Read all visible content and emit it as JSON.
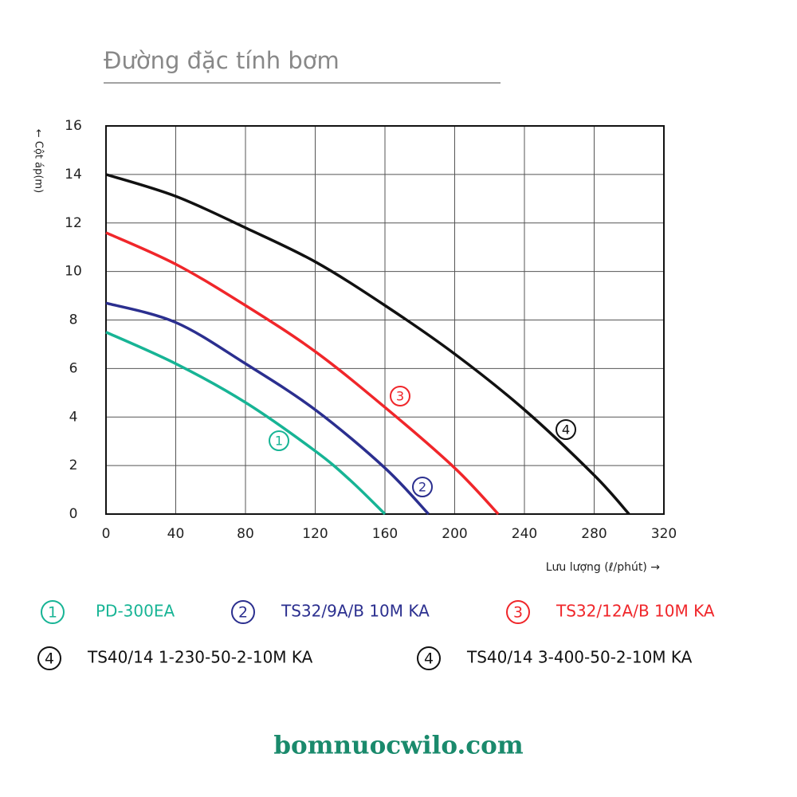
{
  "title": "Đường đặc tính bơm",
  "footer": "bomnuocwilo.com",
  "chart_data": {
    "type": "line",
    "y_label": "← Cột áp(m)",
    "x_label": "Lưu lượng (ℓ/phút) →",
    "xlim": [
      0,
      320
    ],
    "xticks": [
      0,
      40,
      80,
      120,
      160,
      200,
      240,
      280,
      320
    ],
    "ylim": [
      0,
      16
    ],
    "yticks": [
      0,
      2,
      4,
      6,
      8,
      10,
      12,
      14,
      16
    ],
    "grid": true,
    "series": [
      {
        "marker": "1",
        "names": [
          "PD-300EA"
        ],
        "color": "#17b495",
        "x": [
          0,
          40,
          80,
          120,
          140,
          160
        ],
        "values": [
          7.5,
          6.2,
          4.6,
          2.6,
          1.4,
          0
        ]
      },
      {
        "marker": "2",
        "names": [
          "TS32/9A/B 10M KA"
        ],
        "color": "#2b2f8f",
        "x": [
          0,
          40,
          80,
          120,
          160,
          185
        ],
        "values": [
          8.7,
          7.9,
          6.2,
          4.3,
          1.9,
          0
        ]
      },
      {
        "marker": "3",
        "names": [
          "TS32/12A/B 10M KA"
        ],
        "color": "#f0262a",
        "x": [
          0,
          40,
          80,
          120,
          160,
          200,
          225
        ],
        "values": [
          11.6,
          10.3,
          8.6,
          6.7,
          4.4,
          1.9,
          0
        ]
      },
      {
        "marker": "4",
        "names": [
          "TS40/14 1-230-50-2-10M KA",
          "TS40/14 3-400-50-2-10M KA"
        ],
        "color": "#111111",
        "x": [
          0,
          40,
          80,
          120,
          160,
          200,
          240,
          280,
          300
        ],
        "values": [
          14,
          13.1,
          11.8,
          10.4,
          8.6,
          6.6,
          4.3,
          1.6,
          0
        ]
      }
    ]
  }
}
